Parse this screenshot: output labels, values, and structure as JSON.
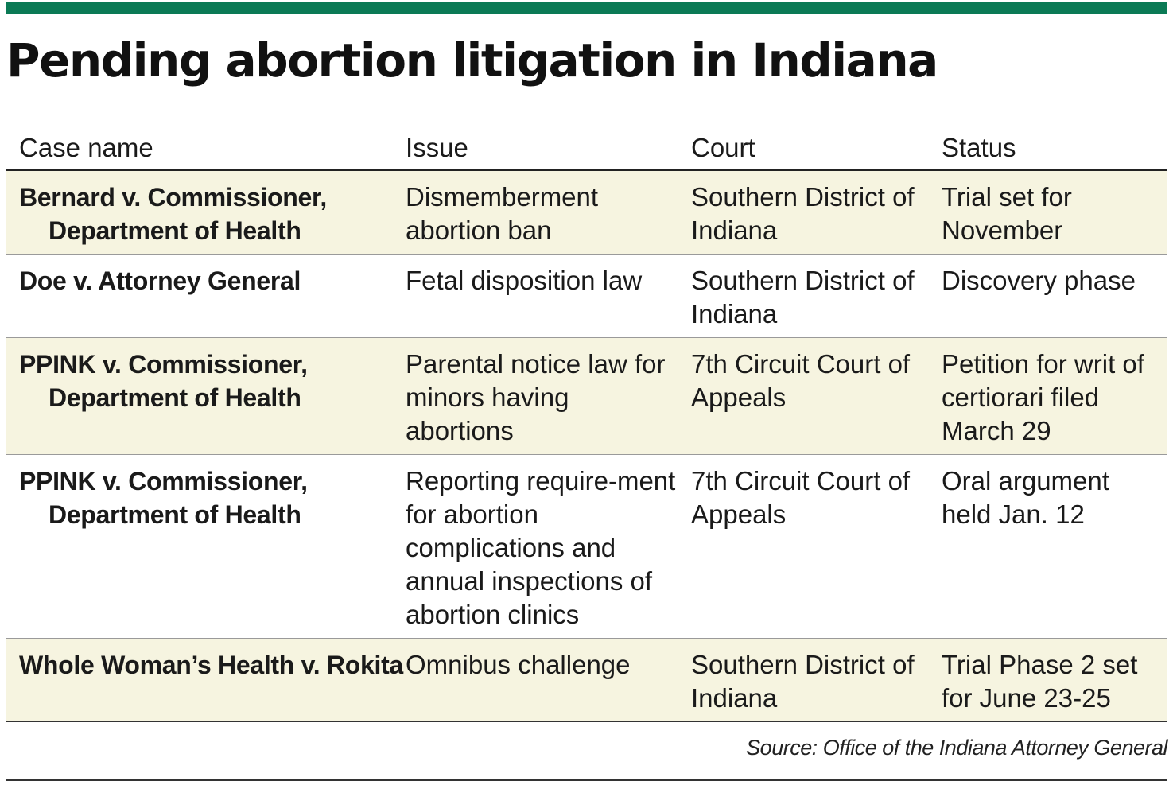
{
  "title": "Pending abortion litigation in Indiana",
  "colors": {
    "accent_bar": "#0b7a55",
    "shaded_row": "#f6f4e0"
  },
  "table": {
    "headers": [
      "Case name",
      "Issue",
      "Court",
      "Status"
    ],
    "rows": [
      {
        "case_name": "Bernard v. Commissioner, Department of Health",
        "issue": "Dismemberment abortion ban",
        "court": "Southern District of Indiana",
        "status": "Trial set for November"
      },
      {
        "case_name": "Doe v. Attorney General",
        "issue": "Fetal disposition law",
        "court": "Southern District of Indiana",
        "status": "Discovery phase"
      },
      {
        "case_name": "PPINK v. Commissioner, Department of Health",
        "issue": "Parental notice law for minors having abortions",
        "court": "7th Circuit Court of Appeals",
        "status": "Petition for writ of certiorari filed March 29"
      },
      {
        "case_name": "PPINK v. Commissioner, Department of Health",
        "issue": "Reporting require-ment for abortion complications and annual inspections of abortion clinics",
        "court": "7th Circuit Court of Appeals",
        "status": "Oral argument held Jan. 12"
      },
      {
        "case_name": "Whole Woman’s Health v. Rokita",
        "issue": "Omnibus challenge",
        "court": "Southern District of Indiana",
        "status": "Trial Phase 2 set for June 23-25"
      }
    ]
  },
  "source": "Source: Office of the Indiana Attorney General"
}
